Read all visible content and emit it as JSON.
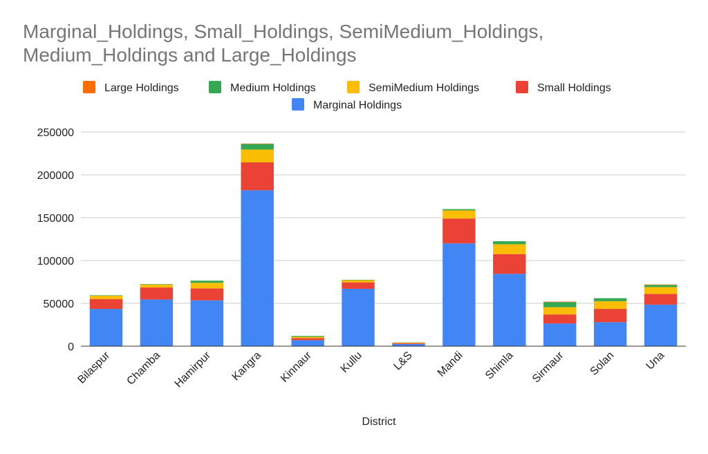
{
  "chart_data": {
    "type": "bar",
    "stacked": true,
    "title_lines": [
      "Marginal_Holdings, Small_Holdings, SemiMedium_Holdings,",
      "Medium_Holdings and Large_Holdings"
    ],
    "xlabel": "District",
    "ylabel": "",
    "ylim": [
      0,
      250000
    ],
    "yticks": [
      "0",
      "50000",
      "100000",
      "150000",
      "200000",
      "250000"
    ],
    "grid": true,
    "legend_position": "top",
    "categories": [
      "Bilaspur",
      "Chamba",
      "Hamirpur",
      "Kangra",
      "Kinnaur",
      "Kullu",
      "L&S",
      "Mandi",
      "Shimla",
      "Sirmaur",
      "Solan",
      "Una"
    ],
    "series": [
      {
        "name": "Marginal Holdings",
        "color": "#4285f4",
        "values": [
          43500,
          54500,
          53500,
          182000,
          7000,
          67000,
          2500,
          120000,
          84500,
          26500,
          28000,
          48500
        ]
      },
      {
        "name": "Small Holdings",
        "color": "#ea4335",
        "values": [
          11500,
          14000,
          14000,
          32500,
          2500,
          7500,
          1000,
          29000,
          23000,
          10500,
          15500,
          12500
        ]
      },
      {
        "name": "SemiMedium Holdings",
        "color": "#fbbc04",
        "values": [
          4000,
          3500,
          6500,
          15000,
          1500,
          2500,
          700,
          9500,
          11500,
          8500,
          9000,
          8000
        ]
      },
      {
        "name": "Medium Holdings",
        "color": "#34a853",
        "values": [
          500,
          500,
          2500,
          6500,
          1000,
          500,
          300,
          1500,
          3500,
          6000,
          3500,
          2500
        ]
      },
      {
        "name": "Large Holdings",
        "color": "#ff6d01",
        "values": [
          0,
          0,
          0,
          500,
          0,
          0,
          0,
          0,
          0,
          500,
          0,
          500
        ]
      }
    ],
    "legend_order": [
      "Large Holdings",
      "Medium Holdings",
      "SemiMedium Holdings",
      "Small Holdings",
      "Marginal Holdings"
    ]
  }
}
